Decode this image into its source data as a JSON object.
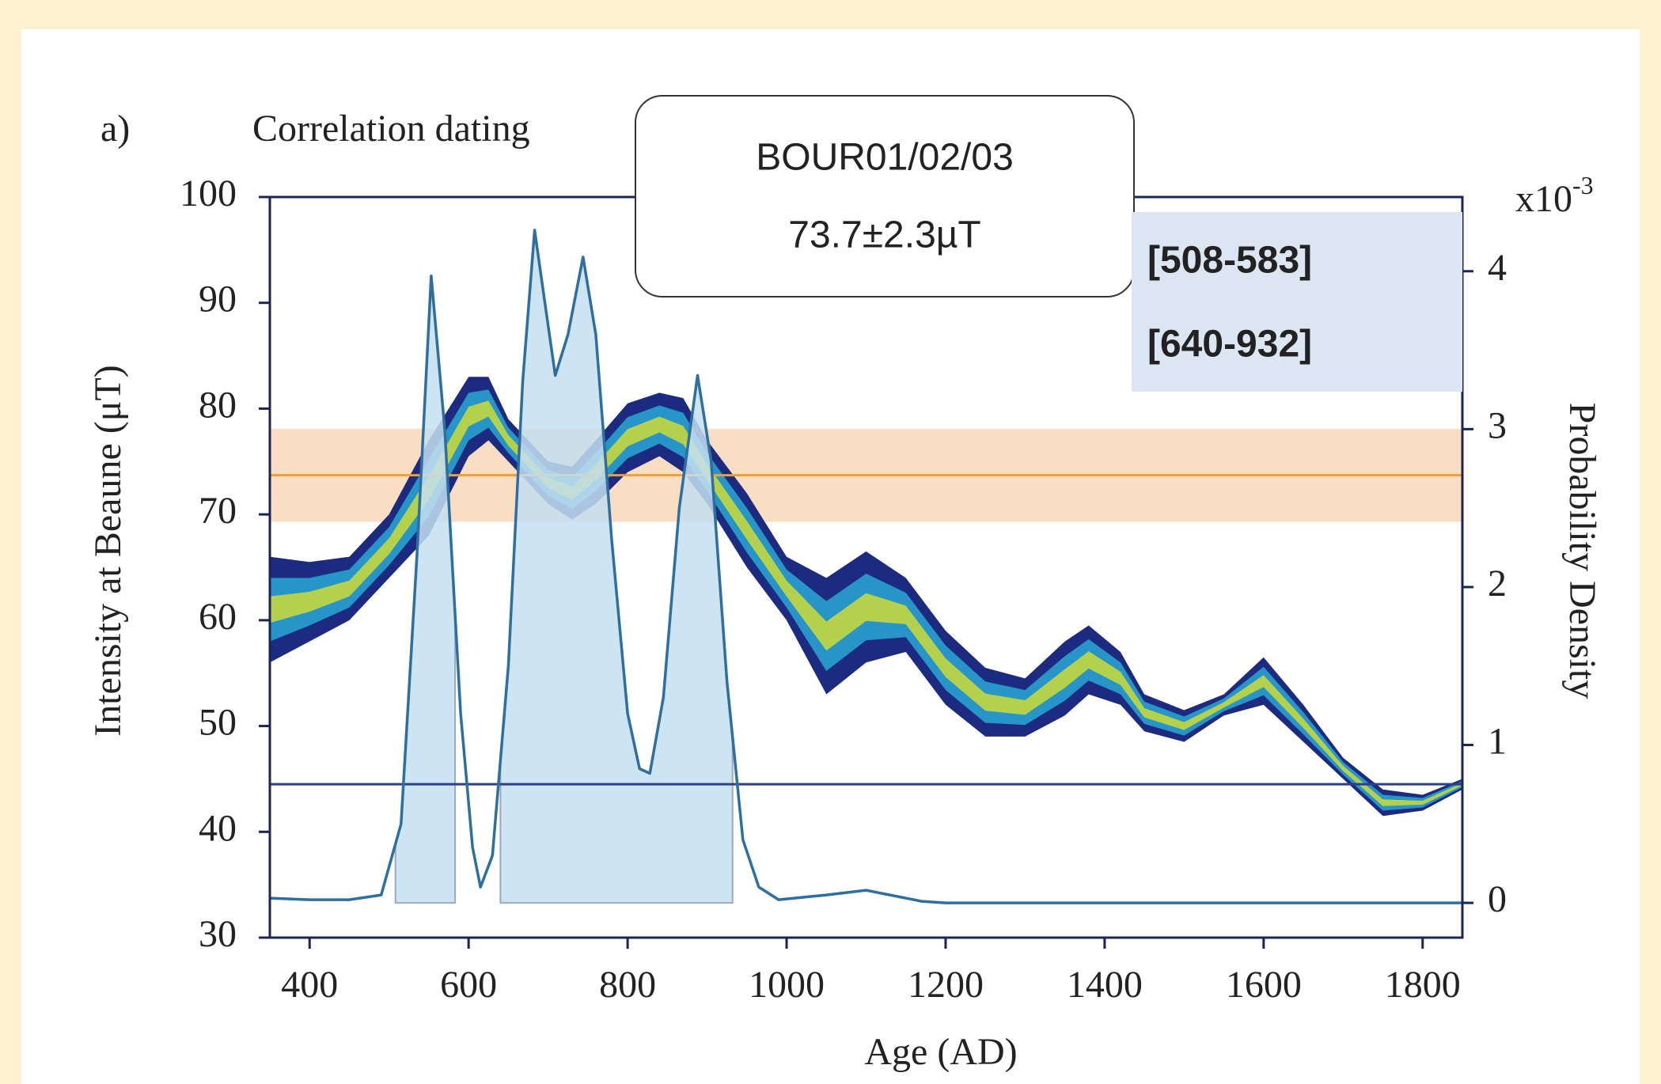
{
  "chart_data": {
    "type": "line",
    "panel_label": "a)",
    "title": "Correlation dating",
    "xlabel": "Age (AD)",
    "ylabel": "Intensity at Beaune (μT)",
    "y2label": "Probability Density",
    "y2_scale_label": "x10",
    "y2_scale_exponent": "-3",
    "annotation": [
      "BOUR01/02/03",
      "73.7±2.3µT"
    ],
    "xlim": [
      350,
      1850
    ],
    "ylim": [
      30,
      100
    ],
    "y2lim": [
      -0.22,
      4.47
    ],
    "xticks": [
      400,
      600,
      800,
      1000,
      1200,
      1400,
      1600,
      1800
    ],
    "yticks": [
      30,
      40,
      50,
      60,
      70,
      80,
      90,
      100
    ],
    "y2ticks": [
      0,
      1,
      2,
      3,
      4
    ],
    "reference": {
      "value": 73.7,
      "band": [
        69.3,
        78.1
      ],
      "color": "#f0a030",
      "band_color": "#f9d8b8"
    },
    "threshold": {
      "value": 44.5,
      "color": "#2b3f8c"
    },
    "intervals": [
      {
        "from": 508,
        "to": 583,
        "label": "[508-583]"
      },
      {
        "from": 640,
        "to": 932,
        "label": "[640-932]"
      }
    ],
    "interval_color": "#c5e0f0",
    "curve": {
      "axis": "y2",
      "color": "#2f6fa0",
      "x": [
        350,
        400,
        450,
        490,
        515,
        535,
        553,
        570,
        590,
        605,
        615,
        630,
        650,
        668,
        683,
        696,
        709,
        725,
        744,
        760,
        780,
        800,
        815,
        828,
        845,
        865,
        888,
        905,
        925,
        945,
        965,
        990,
        1050,
        1100,
        1130,
        1170,
        1200,
        1850
      ],
      "values": [
        0.03,
        0.02,
        0.02,
        0.05,
        0.5,
        2.2,
        3.97,
        3.0,
        1.2,
        0.35,
        0.1,
        0.3,
        1.5,
        3.3,
        4.26,
        3.8,
        3.34,
        3.6,
        4.09,
        3.6,
        2.3,
        1.2,
        0.85,
        0.82,
        1.3,
        2.5,
        3.34,
        2.8,
        1.4,
        0.4,
        0.1,
        0.02,
        0.05,
        0.08,
        0.05,
        0.01,
        0,
        0
      ]
    },
    "envelope": {
      "x": [
        350,
        400,
        450,
        500,
        550,
        600,
        625,
        650,
        700,
        730,
        760,
        800,
        840,
        870,
        900,
        950,
        1000,
        1050,
        1100,
        1150,
        1200,
        1250,
        1300,
        1350,
        1380,
        1420,
        1450,
        1500,
        1550,
        1600,
        1650,
        1700,
        1750,
        1800,
        1850
      ],
      "upper": [
        66,
        65.5,
        66,
        70,
        77,
        83,
        83,
        79,
        75,
        74.5,
        77,
        80.5,
        81.5,
        81,
        77,
        72,
        66,
        64,
        66.5,
        64,
        59,
        55.5,
        54.5,
        58,
        59.5,
        57,
        53,
        51.5,
        53,
        56.5,
        52,
        47,
        44,
        43.5,
        45
      ],
      "lower": [
        56,
        58,
        60,
        64,
        68,
        75.5,
        77,
        75,
        71,
        69.5,
        71,
        74,
        75.5,
        74,
        71,
        65,
        60,
        53,
        56,
        57,
        52,
        49,
        49,
        51,
        53,
        52,
        49.5,
        48.5,
        51,
        52,
        48.5,
        45,
        41.5,
        42,
        44
      ],
      "colors": [
        "#1c2a80",
        "#2ab0d8",
        "#d8e030"
      ]
    }
  }
}
